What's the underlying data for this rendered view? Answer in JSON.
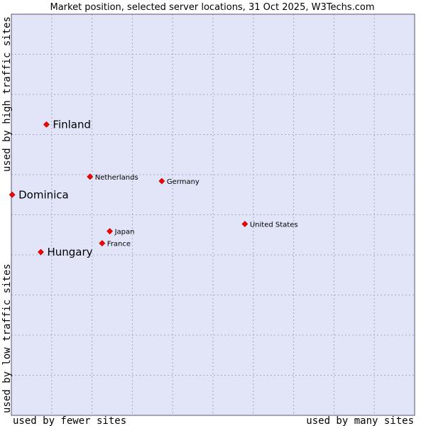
{
  "chart_data": {
    "type": "scatter",
    "title": "Market position, selected server locations, 31 Oct 2025, W3Techs.com",
    "xlabel_left": "used by fewer sites",
    "xlabel_right": "used by many sites",
    "ylabel_bottom": "used by low traffic sites",
    "ylabel_top": "used by high traffic sites",
    "grid": true,
    "xlim": [
      0,
      10
    ],
    "ylim": [
      0,
      10
    ],
    "points": [
      {
        "name": "Finland",
        "x": 0.87,
        "y": 7.25,
        "highlight": true
      },
      {
        "name": "Dominica",
        "x": 0.02,
        "y": 5.5,
        "highlight": true
      },
      {
        "name": "Hungary",
        "x": 0.73,
        "y": 4.07,
        "highlight": true
      },
      {
        "name": "Netherlands",
        "x": 1.95,
        "y": 5.95,
        "highlight": false
      },
      {
        "name": "Germany",
        "x": 3.73,
        "y": 5.84,
        "highlight": false
      },
      {
        "name": "United States",
        "x": 5.79,
        "y": 4.77,
        "highlight": false
      },
      {
        "name": "Japan",
        "x": 2.44,
        "y": 4.59,
        "highlight": false
      },
      {
        "name": "France",
        "x": 2.25,
        "y": 4.29,
        "highlight": false
      }
    ],
    "colors": {
      "plot_bg": "#e2e4f8",
      "marker": "#ff0000",
      "marker_edge": "#990000",
      "grid": "#a8a8c8",
      "frame": "#555577"
    }
  }
}
